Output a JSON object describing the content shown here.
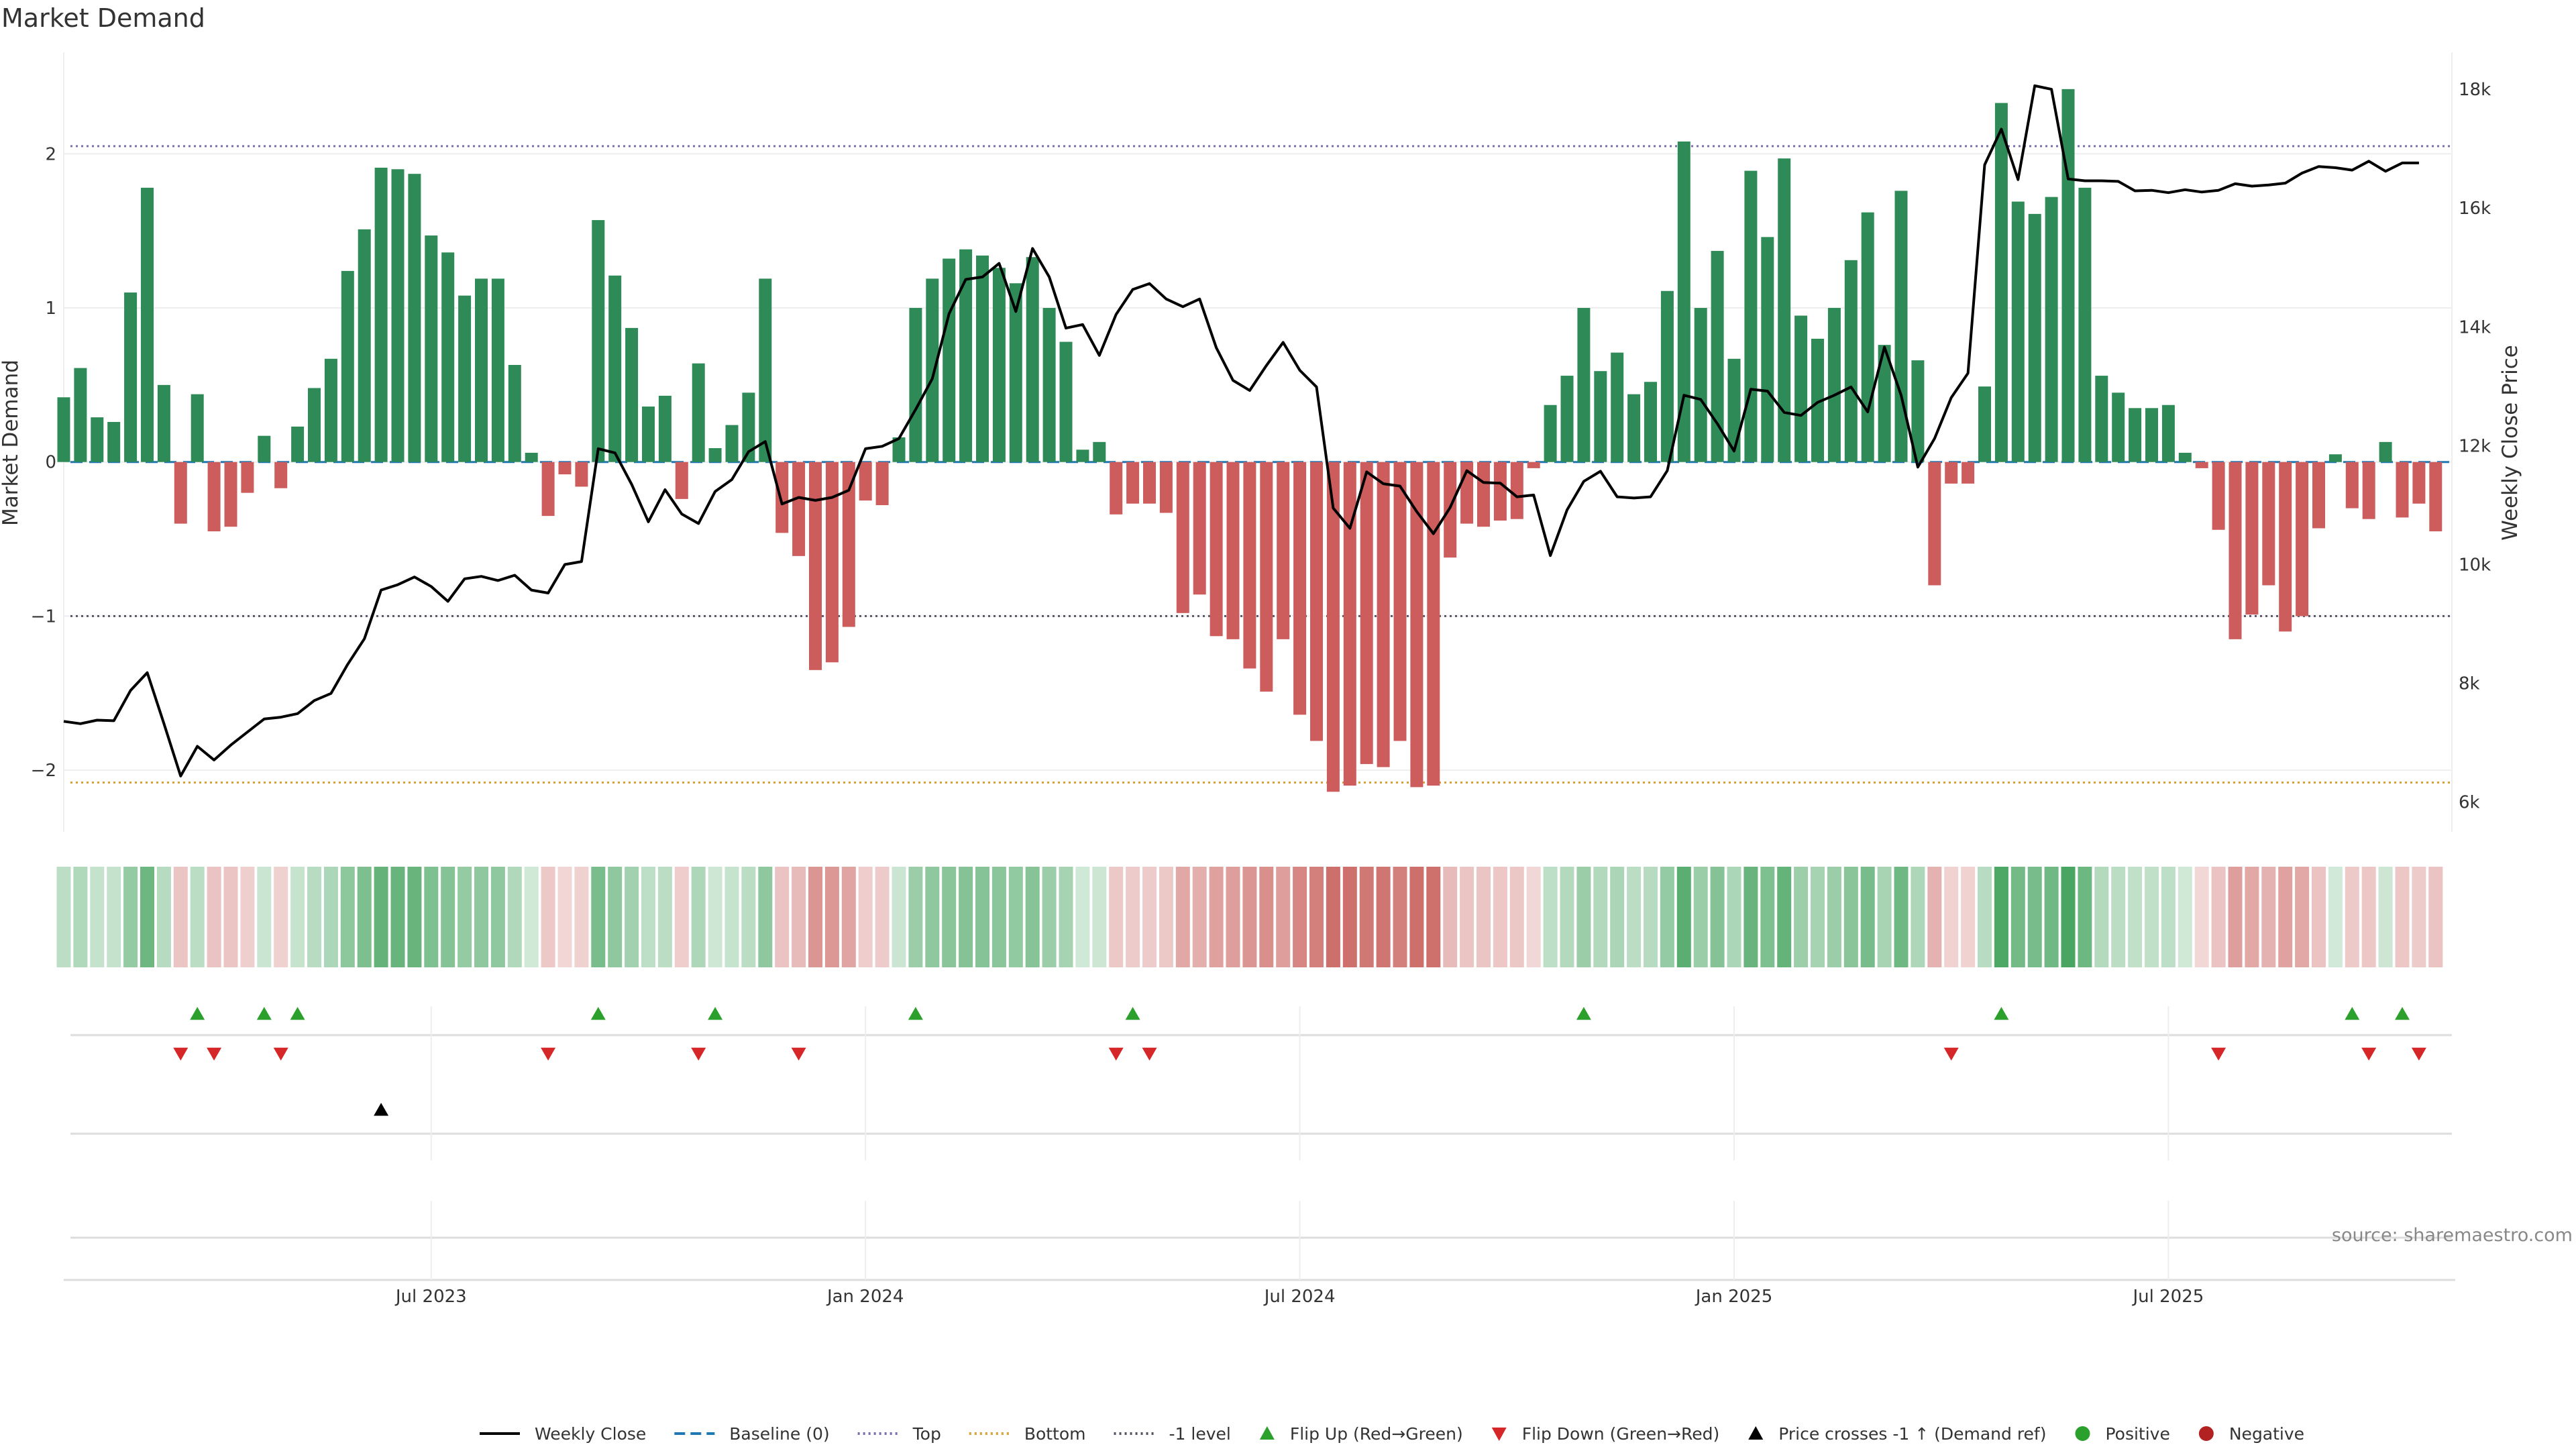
{
  "chart_data": {
    "type": "bar",
    "title": "Market Demand",
    "ylabel": "Market Demand",
    "y2label": "Weekly Close Price",
    "ylim": [
      -2.4,
      2.65
    ],
    "y2lim": [
      5500,
      18600
    ],
    "yticks": [
      {
        "value": 2,
        "label": "2"
      },
      {
        "value": 1,
        "label": "1"
      },
      {
        "value": 0,
        "label": "0"
      },
      {
        "value": -1,
        "label": "−1"
      },
      {
        "value": -2,
        "label": "−2"
      }
    ],
    "y2ticks": [
      {
        "value": 18000,
        "label": "18k"
      },
      {
        "value": 16000,
        "label": "16k"
      },
      {
        "value": 14000,
        "label": "14k"
      },
      {
        "value": 12000,
        "label": "12k"
      },
      {
        "value": 10000,
        "label": "10k"
      },
      {
        "value": 8000,
        "label": "8k"
      },
      {
        "value": 6000,
        "label": "6k"
      }
    ],
    "xticks": [
      {
        "index": 22,
        "label": "Jul 2023"
      },
      {
        "index": 48,
        "label": "Jan 2024"
      },
      {
        "index": 74,
        "label": "Jul 2024"
      },
      {
        "index": 100,
        "label": "Jan 2025"
      },
      {
        "index": 126,
        "label": "Jul 2025"
      }
    ],
    "reference_lines": {
      "top": 2.05,
      "bottom": -2.08,
      "minus_one": -1,
      "baseline": 0
    },
    "demand": [
      0.42,
      0.61,
      0.29,
      0.26,
      1.1,
      1.78,
      0.5,
      -0.4,
      0.44,
      -0.45,
      -0.42,
      -0.2,
      0.17,
      -0.17,
      0.23,
      0.48,
      0.67,
      1.24,
      1.51,
      1.91,
      1.9,
      1.87,
      1.47,
      1.36,
      1.08,
      1.19,
      1.19,
      0.63,
      0.06,
      -0.35,
      -0.08,
      -0.16,
      1.57,
      1.21,
      0.87,
      0.36,
      0.43,
      -0.24,
      0.64,
      0.09,
      0.24,
      0.45,
      1.19,
      -0.46,
      -0.61,
      -1.35,
      -1.3,
      -1.07,
      -0.25,
      -0.28,
      0.16,
      1.0,
      1.19,
      1.32,
      1.38,
      1.34,
      1.26,
      1.16,
      1.33,
      1.0,
      0.78,
      0.08,
      0.13,
      -0.34,
      -0.27,
      -0.27,
      -0.33,
      -0.98,
      -0.86,
      -1.13,
      -1.15,
      -1.34,
      -1.49,
      -1.15,
      -1.64,
      -1.81,
      -2.14,
      -2.1,
      -1.96,
      -1.98,
      -1.81,
      -2.11,
      -2.1,
      -0.62,
      -0.4,
      -0.42,
      -0.38,
      -0.37,
      -0.04,
      0.37,
      0.56,
      1.0,
      0.59,
      0.71,
      0.44,
      0.52,
      1.11,
      2.08,
      1.0,
      1.37,
      0.67,
      1.89,
      1.46,
      1.97,
      0.95,
      0.8,
      1.0,
      1.31,
      1.62,
      0.76,
      1.76,
      0.66,
      -0.8,
      -0.14,
      -0.14,
      0.49,
      2.33,
      1.69,
      1.61,
      1.72,
      2.42,
      1.78,
      0.56,
      0.45,
      0.35,
      0.35,
      0.37,
      0.06,
      -0.04,
      -0.44,
      -1.15,
      -0.99,
      -0.8,
      -1.1,
      -1.0,
      -0.43,
      0.05,
      -0.3,
      -0.37,
      0.13,
      -0.36,
      -0.27,
      -0.45
    ],
    "price": [
      7360,
      7320,
      7380,
      7370,
      7880,
      8180,
      7320,
      6440,
      6940,
      6710,
      6960,
      7180,
      7400,
      7430,
      7490,
      7710,
      7830,
      8320,
      8750,
      9570,
      9660,
      9790,
      9630,
      9380,
      9760,
      9800,
      9730,
      9820,
      9570,
      9520,
      10000,
      10050,
      11950,
      11880,
      11350,
      10720,
      11260,
      10850,
      10690,
      11230,
      11430,
      11900,
      12070,
      11020,
      11130,
      11080,
      11130,
      11250,
      11950,
      11990,
      12120,
      12610,
      13130,
      14220,
      14800,
      14840,
      15070,
      14260,
      15320,
      14840,
      13980,
      14040,
      13520,
      14210,
      14630,
      14730,
      14470,
      14340,
      14470,
      13650,
      13100,
      12930,
      13350,
      13740,
      13270,
      12990,
      10950,
      10610,
      11560,
      11360,
      11320,
      10890,
      10520,
      10960,
      11580,
      11380,
      11370,
      11140,
      11170,
      10150,
      10920,
      11400,
      11570,
      11140,
      11120,
      11140,
      11580,
      12850,
      12780,
      12370,
      11910,
      12950,
      12920,
      12560,
      12510,
      12730,
      12850,
      12990,
      12570,
      13660,
      12850,
      11640,
      12120,
      12810,
      13220,
      16730,
      17330,
      16480,
      18060,
      18000,
      16490,
      16460,
      16460,
      16450,
      16290,
      16300,
      16260,
      16310,
      16270,
      16300,
      16410,
      16370,
      16390,
      16420,
      16590,
      16700,
      16680,
      16640,
      16790,
      16620,
      16760,
      16760
    ],
    "flip_up": [
      8,
      12,
      14,
      32,
      39,
      51,
      64,
      91,
      116,
      137,
      140
    ],
    "flip_down": [
      7,
      9,
      13,
      29,
      38,
      44,
      63,
      65,
      113,
      129,
      138,
      141
    ],
    "price_cross_up": [
      19
    ],
    "source": "source: sharemaestro.com",
    "legend": [
      {
        "label": "Weekly Close",
        "kind": "line-solid",
        "color": "#000000"
      },
      {
        "label": "Baseline (0)",
        "kind": "line-dash",
        "color": "#1f77b4"
      },
      {
        "label": "Top",
        "kind": "line-dot",
        "color": "#7b6fb0"
      },
      {
        "label": "Bottom",
        "kind": "line-dot",
        "color": "#d9a036"
      },
      {
        "label": "-1 level",
        "kind": "line-dot",
        "color": "#555566"
      },
      {
        "label": "Flip Up (Red→Green)",
        "kind": "tri-up",
        "color": "#2ca02c"
      },
      {
        "label": "Flip Down (Green→Red)",
        "kind": "tri-down",
        "color": "#d62728"
      },
      {
        "label": "Price crosses -1 ↑ (Demand ref)",
        "kind": "tri-up",
        "color": "#000000"
      },
      {
        "label": "Positive",
        "kind": "dot",
        "color": "#2ca02c"
      },
      {
        "label": "Negative",
        "kind": "dot",
        "color": "#b22222"
      }
    ],
    "colors": {
      "positive": "#2e8b57",
      "negative": "#cd5c5c",
      "strip_positive": "#3a9e55",
      "strip_negative": "#c4544f",
      "price": "#000000",
      "flip_up": "#2ca02c",
      "flip_down": "#d62728",
      "cross": "#000000"
    }
  }
}
